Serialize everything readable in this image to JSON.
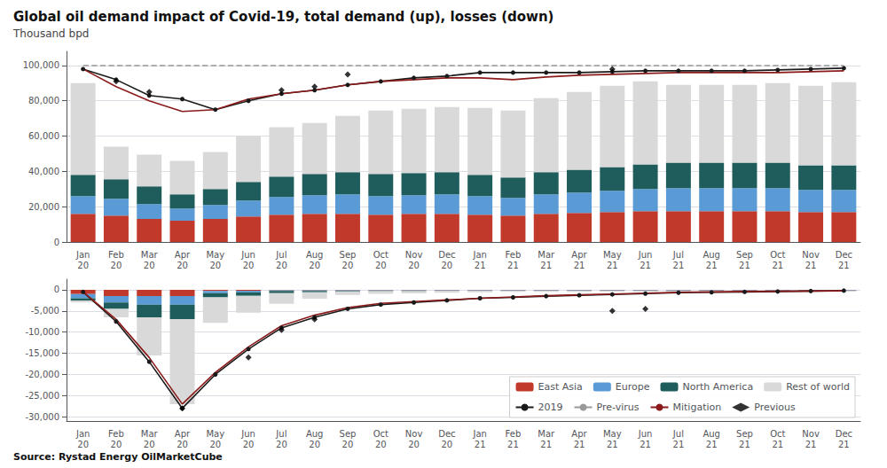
{
  "chart_data": [
    {
      "type": "bar",
      "title": "Global oil demand impact of Covid-19, total demand (up), losses (down)",
      "subtitle": "Thousand bpd",
      "stacked": true,
      "grid": true,
      "categories": [
        "Jan\n20",
        "Feb\n20",
        "Mar\n20",
        "Apr\n20",
        "May\n20",
        "Jun\n20",
        "Jul\n20",
        "Aug\n20",
        "Sep\n20",
        "Oct\n20",
        "Nov\n20",
        "Dec\n20",
        "Jan\n21",
        "Feb\n21",
        "Mar\n21",
        "Apr\n21",
        "May\n21",
        "Jun\n21",
        "Jul\n21",
        "Aug\n21",
        "Sep\n21",
        "Oct\n21",
        "Nov\n21",
        "Dec\n21"
      ],
      "ylim": [
        0,
        108000
      ],
      "yticks": [
        0,
        {
          "value": 20000,
          "label": "20,000"
        },
        {
          "value": 40000,
          "label": "40,000"
        },
        {
          "value": 60000,
          "label": "60,000"
        },
        {
          "value": 80000,
          "label": "80,000"
        },
        {
          "value": 100000,
          "label": "100,000"
        }
      ],
      "series": [
        {
          "name": "East Asia",
          "type": "bar",
          "color": "#c0392b",
          "values": [
            16000,
            15000,
            13000,
            12000,
            13000,
            14500,
            15500,
            16000,
            16000,
            15500,
            16000,
            16000,
            15500,
            15000,
            16000,
            16500,
            17000,
            17500,
            17500,
            17500,
            17500,
            17500,
            17000,
            17000
          ]
        },
        {
          "name": "Europe",
          "type": "bar",
          "color": "#5b9bd5",
          "values": [
            10000,
            9500,
            8500,
            7000,
            8000,
            9000,
            10000,
            10500,
            11000,
            10500,
            10500,
            11000,
            10500,
            10000,
            11000,
            11500,
            12000,
            12500,
            13000,
            13000,
            13000,
            13000,
            12500,
            12500
          ]
        },
        {
          "name": "North America",
          "type": "bar",
          "color": "#1f5c5c",
          "values": [
            12000,
            11000,
            10000,
            8000,
            9000,
            10500,
            11500,
            12000,
            12500,
            12500,
            12500,
            12500,
            12000,
            11500,
            12500,
            13000,
            13500,
            14000,
            14500,
            14500,
            14500,
            14500,
            14000,
            14000
          ]
        },
        {
          "name": "Rest of world",
          "type": "bar",
          "color": "#d9d9d9",
          "values": [
            52000,
            18500,
            18000,
            19000,
            21000,
            26000,
            28000,
            29000,
            32000,
            36000,
            36500,
            37000,
            38000,
            38000,
            42000,
            44000,
            46000,
            47000,
            44000,
            44000,
            44000,
            45000,
            45000,
            47000
          ]
        },
        {
          "name": "2019",
          "type": "line",
          "color": "#1a1a1a",
          "marker": "o",
          "line_style": "solid",
          "values": [
            98000,
            92000,
            83000,
            81000,
            75000,
            80000,
            84000,
            86000,
            89000,
            91000,
            93000,
            94000,
            96000,
            96000,
            96000,
            96000,
            96500,
            97000,
            97000,
            97000,
            97000,
            97500,
            98000,
            98500
          ]
        },
        {
          "name": "Pre-virus",
          "type": "line",
          "color": "#999999",
          "line_style": "dashed",
          "values": [
            100000,
            100000,
            100000,
            100000,
            100000,
            100000,
            100000,
            100000,
            100000,
            100000,
            100000,
            100000,
            100000,
            100000,
            100000,
            100000,
            100000,
            100000,
            100000,
            100000,
            100000,
            100000,
            100000,
            100000
          ]
        },
        {
          "name": "Mitigation",
          "type": "line",
          "color": "#8b1a1a",
          "line_style": "solid",
          "values": [
            98000,
            88000,
            80000,
            74000,
            75000,
            81000,
            84000,
            86000,
            89000,
            91000,
            92000,
            93000,
            93000,
            92000,
            93500,
            94500,
            95000,
            95500,
            96000,
            96000,
            96000,
            96000,
            96500,
            97000
          ]
        },
        {
          "name": "Previous",
          "type": "scatter",
          "color": "#000000",
          "marker": "D",
          "values": [
            null,
            91000,
            85000,
            null,
            null,
            null,
            86000,
            88000,
            95000,
            null,
            null,
            null,
            null,
            null,
            null,
            null,
            98000,
            null,
            null,
            null,
            null,
            null,
            null,
            null
          ]
        }
      ]
    },
    {
      "type": "bar",
      "annotation": "Source: Rystad Energy OilMarketCube",
      "stacked": true,
      "grid": true,
      "legend": "lower right",
      "categories": [
        "Jan\n20",
        "Feb\n20",
        "Mar\n20",
        "Apr\n20",
        "May\n20",
        "Jun\n20",
        "Jul\n20",
        "Aug\n20",
        "Sep\n20",
        "Oct\n20",
        "Nov\n20",
        "Dec\n20",
        "Jan\n21",
        "Feb\n21",
        "Mar\n21",
        "Apr\n21",
        "May\n21",
        "Jun\n21",
        "Jul\n21",
        "Aug\n21",
        "Sep\n21",
        "Oct\n21",
        "Nov\n21",
        "Dec\n21"
      ],
      "ylim": [
        -31000,
        2500
      ],
      "yticks": [
        {
          "value": -30000,
          "label": "-30,000"
        },
        {
          "value": -25000,
          "label": "-25,000"
        },
        {
          "value": -20000,
          "label": "-20,000"
        },
        {
          "value": -15000,
          "label": "-15,000"
        },
        {
          "value": -10000,
          "label": "-10,000"
        },
        {
          "value": -5000,
          "label": "-5,000"
        },
        0
      ],
      "series": [
        {
          "name": "East Asia",
          "type": "bar",
          "color": "#c0392b",
          "values": [
            -1000,
            -1500,
            -1500,
            -1500,
            -300,
            -200,
            -100,
            -100,
            -100,
            -100,
            -100,
            -100,
            -100,
            -100,
            -100,
            -100,
            -100,
            -100,
            -100,
            -100,
            -100,
            -100,
            -100,
            -100
          ]
        },
        {
          "name": "Europe",
          "type": "bar",
          "color": "#5b9bd5",
          "values": [
            -1000,
            -1500,
            -2000,
            -2000,
            -500,
            -400,
            -200,
            -200,
            -100,
            -100,
            -100,
            -100,
            -100,
            -100,
            -100,
            -100,
            -100,
            -100,
            -100,
            -100,
            -100,
            -100,
            -100,
            -100
          ]
        },
        {
          "name": "North America",
          "type": "bar",
          "color": "#1f5c5c",
          "values": [
            -500,
            -1500,
            -3000,
            -3500,
            -1000,
            -800,
            -500,
            -300,
            -200,
            -150,
            -150,
            -100,
            -100,
            -100,
            -100,
            -100,
            -100,
            -100,
            -100,
            -100,
            -100,
            -100,
            -100,
            -100
          ]
        },
        {
          "name": "Rest of world",
          "type": "bar",
          "color": "#d9d9d9",
          "values": [
            -500,
            -2000,
            -9000,
            -20000,
            -6000,
            -4000,
            -2500,
            -1500,
            -800,
            -600,
            -500,
            -400,
            -300,
            -200,
            -200,
            -200,
            -150,
            -100,
            -100,
            -100,
            -100,
            -100,
            -100,
            -100
          ]
        },
        {
          "name": "2019",
          "type": "line",
          "color": "#1a1a1a",
          "marker": "o",
          "line_style": "solid",
          "values": [
            -500,
            -7500,
            -17000,
            -28000,
            -20000,
            -14000,
            -9000,
            -6500,
            -4500,
            -3500,
            -3000,
            -2500,
            -2000,
            -1800,
            -1500,
            -1300,
            -1100,
            -900,
            -700,
            -600,
            -500,
            -400,
            -300,
            -200
          ]
        },
        {
          "name": "Mitigation",
          "type": "line",
          "color": "#8b1a1a",
          "line_style": "solid",
          "values": [
            -500,
            -7000,
            -16000,
            -27000,
            -19500,
            -13500,
            -8500,
            -6000,
            -4200,
            -3200,
            -2800,
            -2400,
            -2000,
            -1700,
            -1400,
            -1200,
            -1000,
            -800,
            -600,
            -500,
            -400,
            -350,
            -300,
            -250
          ]
        },
        {
          "name": "Previous",
          "type": "scatter",
          "color": "#000000",
          "marker": "D",
          "values": [
            null,
            null,
            null,
            -28000,
            null,
            -16000,
            -9500,
            -7000,
            null,
            null,
            null,
            null,
            null,
            null,
            null,
            null,
            -5000,
            -4500,
            null,
            null,
            null,
            null,
            null,
            null
          ]
        }
      ]
    }
  ]
}
